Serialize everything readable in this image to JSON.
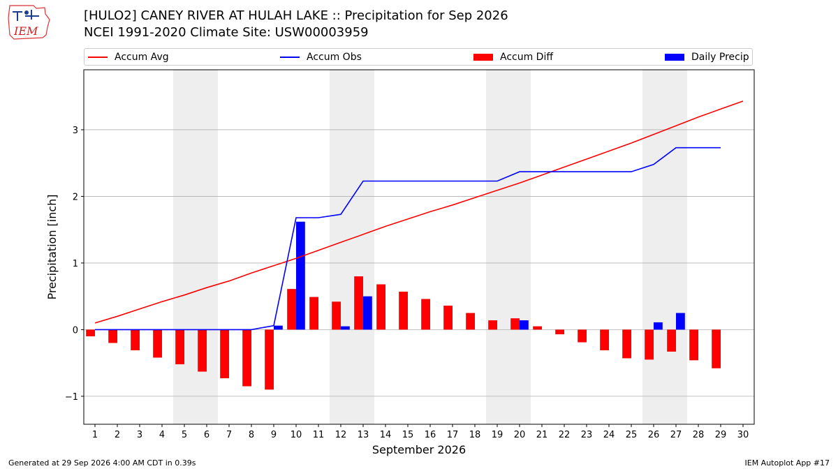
{
  "header": {
    "logo_text": "IEM",
    "title_line1": "[HULO2] CANEY RIVER  AT HULAH LAKE :: Precipitation for Sep 2026",
    "title_line2": "NCEI 1991-2020 Climate Site: USW00003959"
  },
  "legend": {
    "accum_avg": "Accum Avg",
    "accum_obs": "Accum Obs",
    "accum_diff": "Accum Diff",
    "daily_precip": "Daily Precip"
  },
  "colors": {
    "avg": "#ff0000",
    "obs": "#0000ff",
    "diff": "#ff0000",
    "daily": "#0000ff",
    "weekend_shade": "#eeeeee",
    "grid": "#b0b0b0"
  },
  "footer": {
    "left": "Generated at 29 Sep 2026 4:00 AM CDT in 0.39s",
    "right": "IEM Autoplot App #17"
  },
  "chart_data": {
    "type": "bar",
    "xlabel": "September 2026",
    "ylabel": "Precipitation [inch]",
    "xlim": [
      0.5,
      30.5
    ],
    "ylim": [
      -1.42,
      3.9
    ],
    "yticks": [
      -1,
      0,
      1,
      2,
      3
    ],
    "ytick_labels": [
      "−1",
      "0",
      "1",
      "2",
      "3"
    ],
    "xticks": [
      1,
      2,
      3,
      4,
      5,
      6,
      7,
      8,
      9,
      10,
      11,
      12,
      13,
      14,
      15,
      16,
      17,
      18,
      19,
      20,
      21,
      22,
      23,
      24,
      25,
      26,
      27,
      28,
      29,
      30
    ],
    "grid": "horizontal",
    "legend_position": "top",
    "shaded_weekends": [
      [
        5,
        6
      ],
      [
        12,
        13
      ],
      [
        19,
        20
      ],
      [
        26,
        27
      ]
    ],
    "series": [
      {
        "name": "Accum Avg",
        "kind": "line",
        "x": [
          1,
          2,
          3,
          4,
          5,
          6,
          7,
          8,
          9,
          10,
          11,
          12,
          13,
          14,
          15,
          16,
          17,
          18,
          19,
          20,
          21,
          22,
          23,
          24,
          25,
          26,
          27,
          28,
          29,
          30
        ],
        "values": [
          0.1,
          0.2,
          0.31,
          0.42,
          0.52,
          0.63,
          0.73,
          0.85,
          0.96,
          1.07,
          1.19,
          1.31,
          1.43,
          1.55,
          1.66,
          1.77,
          1.87,
          1.98,
          2.09,
          2.2,
          2.32,
          2.44,
          2.56,
          2.68,
          2.8,
          2.93,
          3.06,
          3.19,
          3.31,
          3.43
        ]
      },
      {
        "name": "Accum Obs",
        "kind": "line",
        "x": [
          1,
          2,
          3,
          4,
          5,
          6,
          7,
          8,
          9,
          10,
          11,
          12,
          13,
          14,
          15,
          16,
          17,
          18,
          19,
          20,
          21,
          22,
          23,
          24,
          25,
          26,
          27,
          28,
          29
        ],
        "values": [
          0,
          0,
          0,
          0,
          0,
          0,
          0,
          0,
          0.06,
          1.68,
          1.68,
          1.73,
          2.23,
          2.23,
          2.23,
          2.23,
          2.23,
          2.23,
          2.23,
          2.37,
          2.37,
          2.37,
          2.37,
          2.37,
          2.37,
          2.48,
          2.73,
          2.73,
          2.73
        ]
      },
      {
        "name": "Accum Diff",
        "kind": "bar",
        "x": [
          1,
          2,
          3,
          4,
          5,
          6,
          7,
          8,
          9,
          10,
          11,
          12,
          13,
          14,
          15,
          16,
          17,
          18,
          19,
          20,
          21,
          22,
          23,
          24,
          25,
          26,
          27,
          28,
          29
        ],
        "values": [
          -0.1,
          -0.2,
          -0.31,
          -0.42,
          -0.52,
          -0.63,
          -0.73,
          -0.85,
          -0.9,
          0.61,
          0.49,
          0.42,
          0.8,
          0.68,
          0.57,
          0.46,
          0.36,
          0.25,
          0.14,
          0.17,
          0.05,
          -0.07,
          -0.19,
          -0.31,
          -0.43,
          -0.45,
          -0.33,
          -0.46,
          -0.58
        ]
      },
      {
        "name": "Daily Precip",
        "kind": "bar",
        "x": [
          9,
          10,
          12,
          13,
          20,
          26,
          27
        ],
        "values": [
          0.06,
          1.62,
          0.05,
          0.5,
          0.14,
          0.11,
          0.25
        ]
      }
    ]
  }
}
